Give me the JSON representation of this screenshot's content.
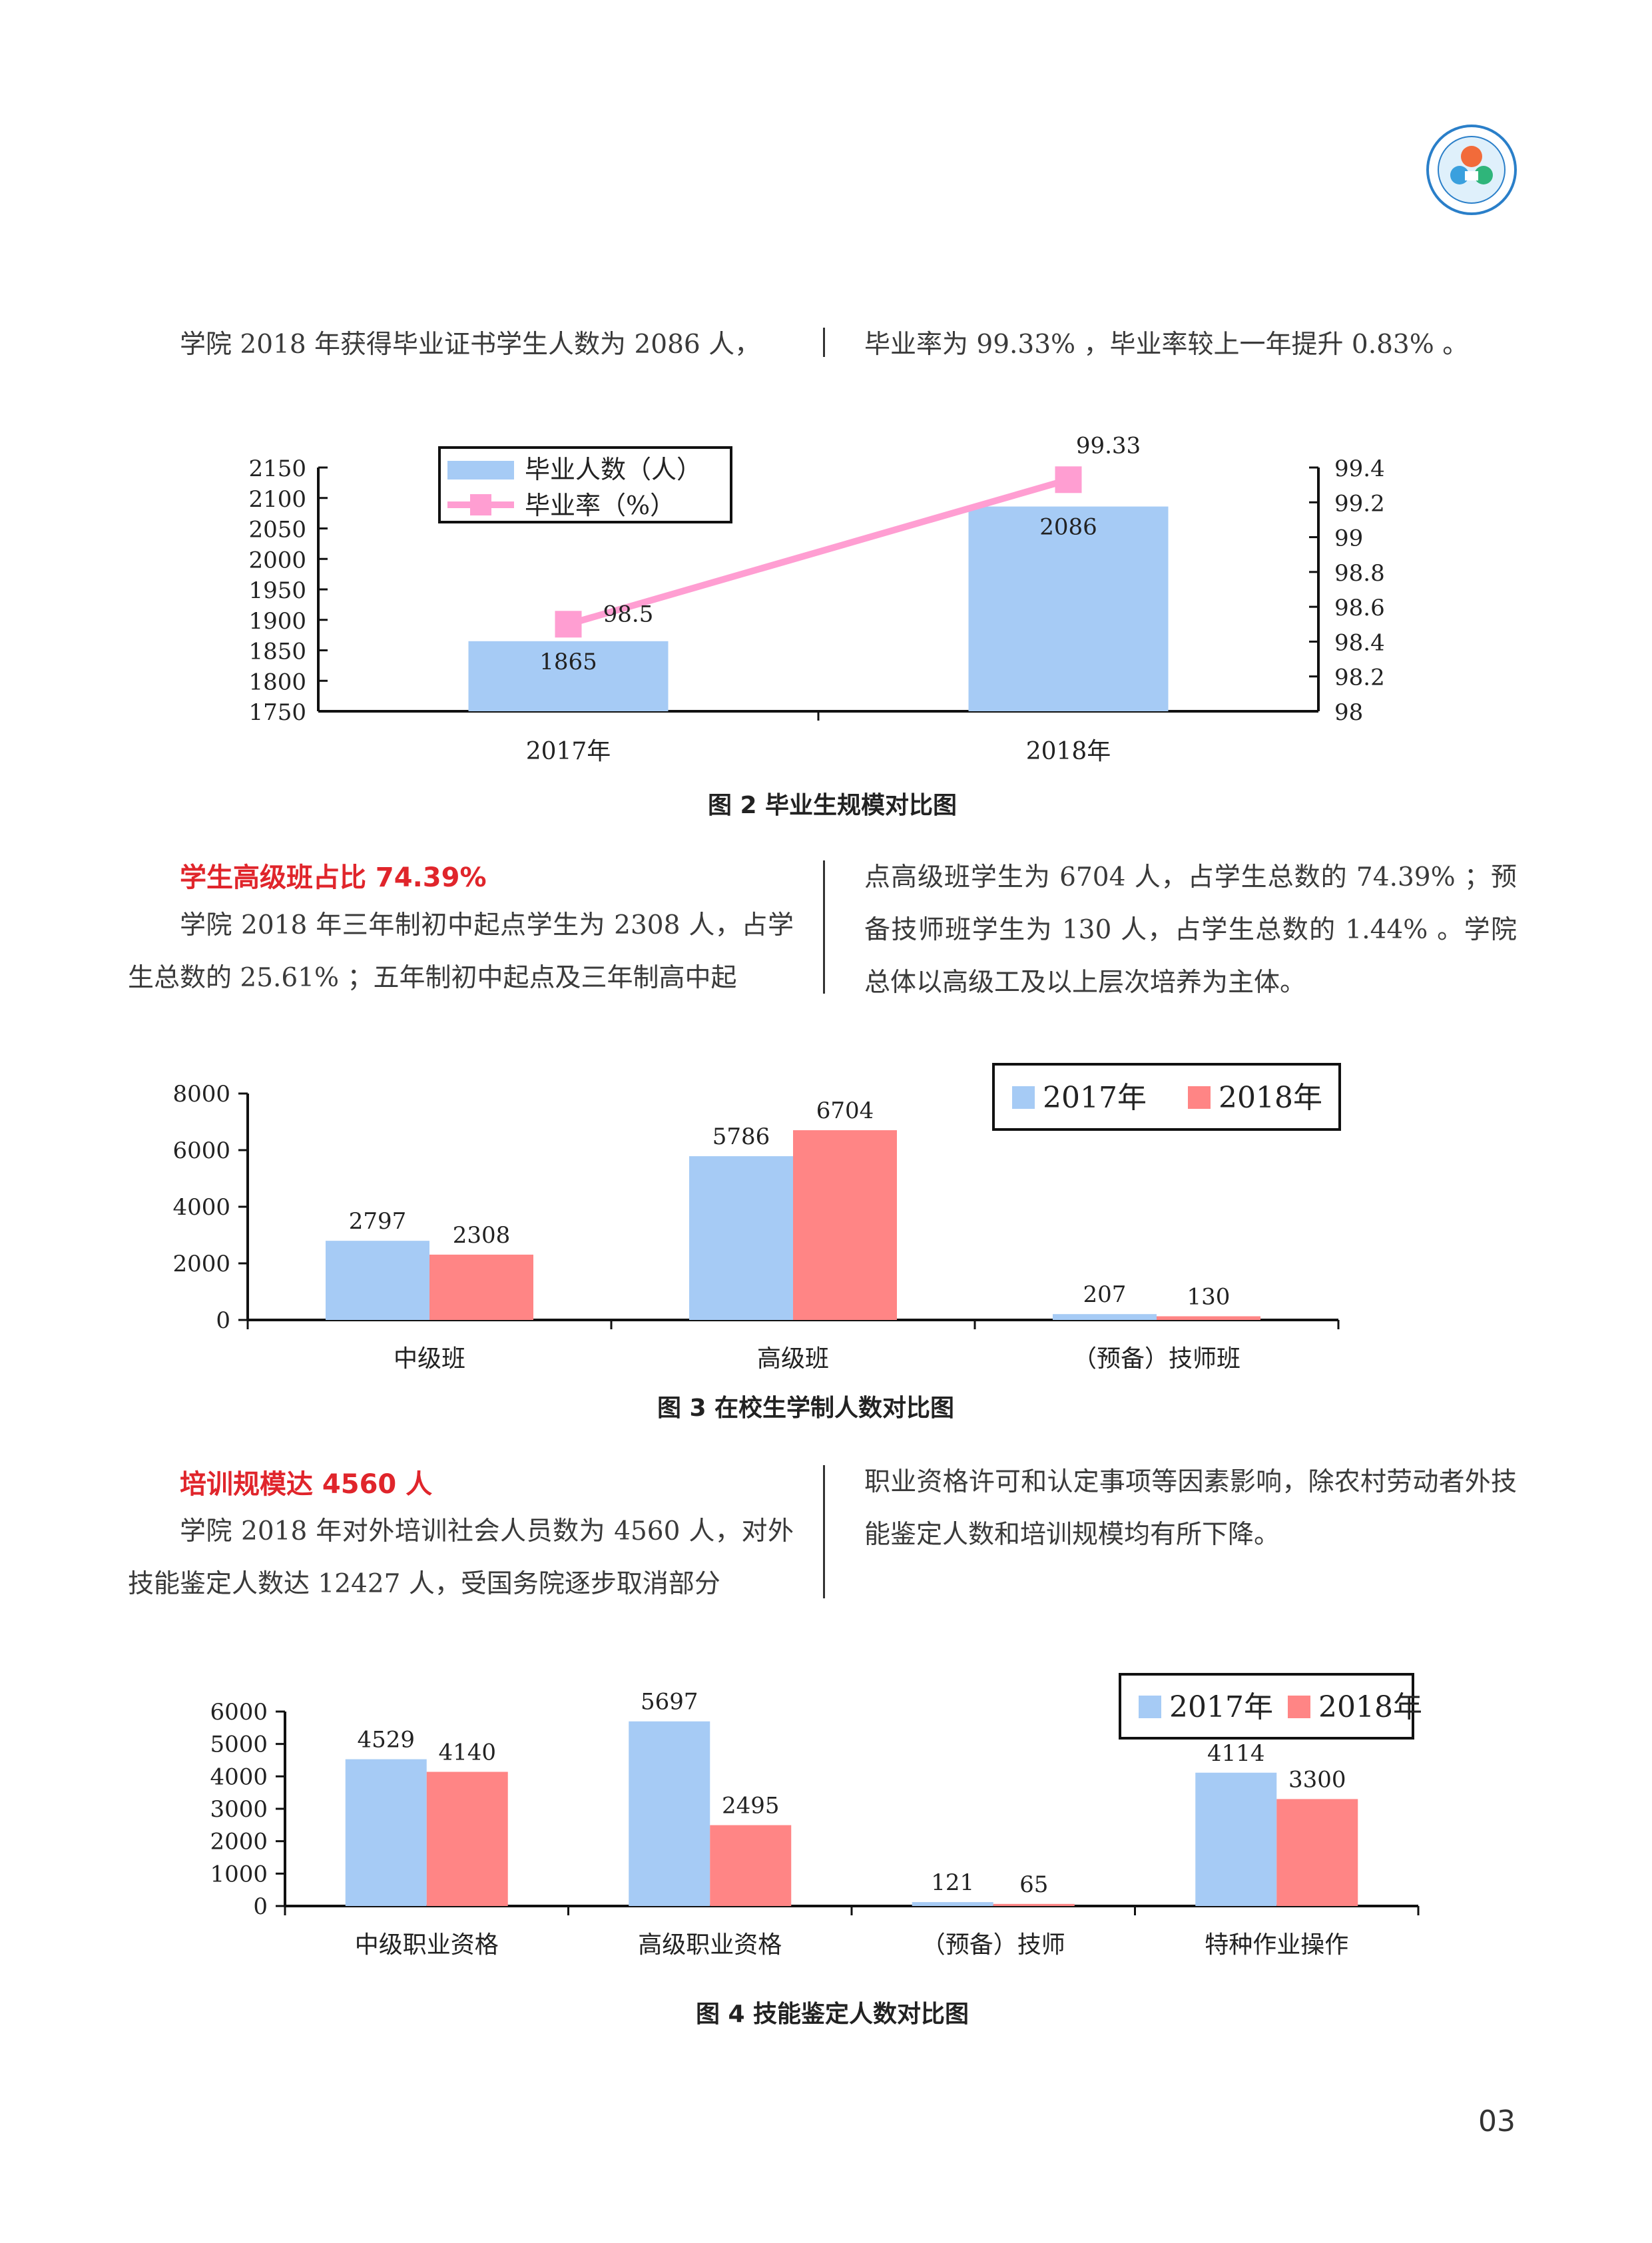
{
  "section1": {
    "left_text": "学院 2018 年获得毕业证书学生人数为 2086 人，",
    "right_text": "毕业率为 99.33% ，毕业率较上一年提升 0.83% 。"
  },
  "section2": {
    "heading": "学生高级班占比 74.39%",
    "left_text": "学院 2018 年三年制初中起点学生为 2308 人，占学生总数的 25.61% ；五年制初中起点及三年制高中起",
    "right_text": "点高级班学生为 6704 人，占学生总数的 74.39% ；预备技师班学生为 130 人，占学生总数的 1.44% 。学院总体以高级工及以上层次培养为主体。"
  },
  "section3": {
    "heading": "培训规模达 4560 人",
    "left_text": "学院 2018 年对外培训社会人员数为 4560 人，对外技能鉴定人数达 12427 人，受国务院逐步取消部分",
    "right_text": "职业资格许可和认定事项等因素影响，除农村劳动者外技能鉴定人数和培训规模均有所下降。"
  },
  "captions": {
    "fig2": "图 2 毕业生规模对比图",
    "fig3": "图 3 在校生学制人数对比图",
    "fig4": "图 4 技能鉴定人数对比图"
  },
  "page_number": "03",
  "colors": {
    "blue": "#a6cbf5",
    "red": "#ff8585",
    "pink": "#ff9ed2",
    "heading_red": "#e0252b"
  },
  "logo_icon": "college-logo-icon",
  "chart_data": [
    {
      "type": "bar",
      "id": "fig2",
      "categories": [
        "2017年",
        "2018年"
      ],
      "series": [
        {
          "name": "毕业人数（人）",
          "values": [
            1865,
            2086
          ],
          "axis": "left",
          "color": "#a6cbf5",
          "labels": [
            "1865",
            "2086"
          ]
        },
        {
          "name": "毕业率（%）",
          "type": "line",
          "values": [
            98.5,
            99.33
          ],
          "axis": "right",
          "color": "#ff9ed2",
          "labels": [
            "98.5",
            "99.33"
          ]
        }
      ],
      "ylim": [
        1750,
        2150
      ],
      "yticks": [
        "2150",
        "2100",
        "2050",
        "2000",
        "1950",
        "1900",
        "1850",
        "1800",
        "1750"
      ],
      "y2lim": [
        98,
        99.4
      ],
      "y2ticks": [
        "99.4",
        "99.2",
        "99",
        "98.8",
        "98.6",
        "98.4",
        "98.2",
        "98"
      ],
      "legend": "top-left"
    },
    {
      "type": "bar",
      "id": "fig3",
      "categories": [
        "中级班",
        "高级班",
        "（预备）技师班"
      ],
      "series": [
        {
          "name": "2017年",
          "values": [
            2797,
            5786,
            207
          ],
          "color": "#a6cbf5"
        },
        {
          "name": "2018年",
          "values": [
            2308,
            6704,
            130
          ],
          "color": "#ff8585"
        }
      ],
      "ylim": [
        0,
        8000
      ],
      "yticks": [
        "8000",
        "6000",
        "4000",
        "2000",
        "0"
      ],
      "legend": "top-right"
    },
    {
      "type": "bar",
      "id": "fig4",
      "categories": [
        "中级职业资格",
        "高级职业资格",
        "（预备）技师",
        "特种作业操作"
      ],
      "series": [
        {
          "name": "2017年",
          "values": [
            4529,
            5697,
            121,
            4114
          ],
          "color": "#a6cbf5"
        },
        {
          "name": "2018年",
          "values": [
            4140,
            2495,
            65,
            3300
          ],
          "color": "#ff8585"
        }
      ],
      "ylim": [
        0,
        6000
      ],
      "yticks": [
        "6000",
        "5000",
        "4000",
        "3000",
        "2000",
        "1000",
        "0"
      ],
      "legend": "top-right"
    }
  ]
}
